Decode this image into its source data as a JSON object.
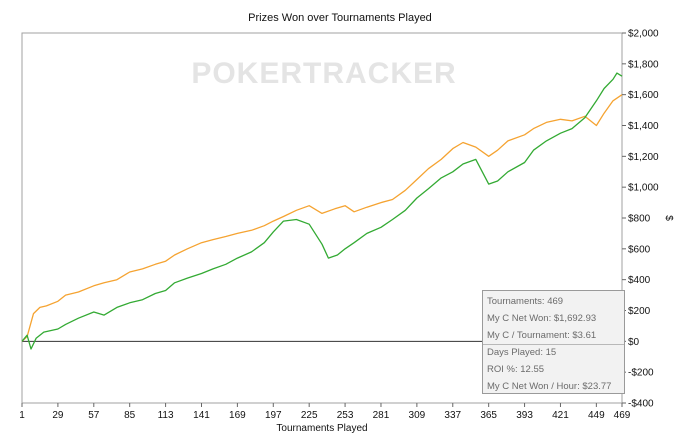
{
  "chart_data": {
    "type": "line",
    "title": "Prizes Won over Tournaments Played",
    "xlabel": "Tournaments Played",
    "ylabel": "$",
    "watermark": "POKERTRACKER",
    "xlim": [
      1,
      469
    ],
    "ylim": [
      -400,
      2000
    ],
    "x_ticks": [
      1,
      29,
      57,
      85,
      113,
      141,
      169,
      197,
      225,
      253,
      281,
      309,
      337,
      365,
      393,
      421,
      449,
      469
    ],
    "y_ticks": [
      {
        "value": 2000,
        "label": "$2,000"
      },
      {
        "value": 1800,
        "label": "$1,800"
      },
      {
        "value": 1600,
        "label": "$1,600"
      },
      {
        "value": 1400,
        "label": "$1,400"
      },
      {
        "value": 1200,
        "label": "$1,200"
      },
      {
        "value": 1000,
        "label": "$1,000"
      },
      {
        "value": 800,
        "label": "$800"
      },
      {
        "value": 600,
        "label": "$600"
      },
      {
        "value": 400,
        "label": "$400"
      },
      {
        "value": 200,
        "label": "$200"
      },
      {
        "value": 0,
        "label": "$0"
      },
      {
        "value": -200,
        "label": "-$200"
      },
      {
        "value": -400,
        "label": "-$400"
      }
    ],
    "grid": false,
    "series": [
      {
        "color": "#f5a331",
        "x": [
          1,
          5,
          10,
          15,
          20,
          29,
          35,
          45,
          57,
          65,
          75,
          85,
          95,
          105,
          113,
          120,
          130,
          141,
          150,
          160,
          169,
          180,
          190,
          197,
          205,
          215,
          225,
          235,
          245,
          253,
          260,
          270,
          281,
          290,
          300,
          309,
          318,
          328,
          337,
          345,
          355,
          365,
          372,
          380,
          393,
          400,
          410,
          421,
          430,
          440,
          449,
          455,
          462,
          469
        ],
        "y": [
          0,
          30,
          180,
          220,
          230,
          260,
          300,
          320,
          360,
          380,
          400,
          450,
          470,
          500,
          520,
          560,
          600,
          640,
          660,
          680,
          700,
          720,
          750,
          780,
          810,
          850,
          880,
          830,
          860,
          880,
          840,
          870,
          900,
          920,
          980,
          1050,
          1120,
          1180,
          1250,
          1290,
          1260,
          1200,
          1240,
          1300,
          1340,
          1380,
          1420,
          1440,
          1430,
          1460,
          1400,
          1480,
          1560,
          1600
        ]
      },
      {
        "color": "#33aa33",
        "x": [
          1,
          5,
          8,
          12,
          18,
          29,
          35,
          45,
          57,
          65,
          75,
          85,
          95,
          105,
          113,
          120,
          130,
          141,
          150,
          160,
          169,
          180,
          190,
          197,
          205,
          215,
          225,
          235,
          240,
          247,
          253,
          260,
          270,
          281,
          290,
          300,
          309,
          318,
          328,
          337,
          345,
          355,
          365,
          372,
          380,
          393,
          400,
          410,
          421,
          430,
          440,
          449,
          455,
          462,
          465,
          469
        ],
        "y": [
          0,
          40,
          -50,
          20,
          60,
          80,
          110,
          150,
          190,
          170,
          220,
          250,
          270,
          310,
          330,
          380,
          410,
          440,
          470,
          500,
          540,
          580,
          640,
          710,
          780,
          790,
          760,
          630,
          540,
          560,
          600,
          640,
          700,
          740,
          790,
          850,
          930,
          990,
          1060,
          1100,
          1150,
          1180,
          1020,
          1040,
          1100,
          1160,
          1240,
          1300,
          1350,
          1380,
          1450,
          1560,
          1640,
          1700,
          1740,
          1720
        ]
      }
    ]
  },
  "stats": {
    "tournaments": "Tournaments: 469",
    "net_won": "My C Net Won: $1,692.93",
    "per_tournament": "My C / Tournament: $3.61",
    "days_played": "Days Played: 15",
    "roi": "ROI %: 12.55",
    "net_won_hour": "My C Net Won / Hour: $23.77"
  }
}
